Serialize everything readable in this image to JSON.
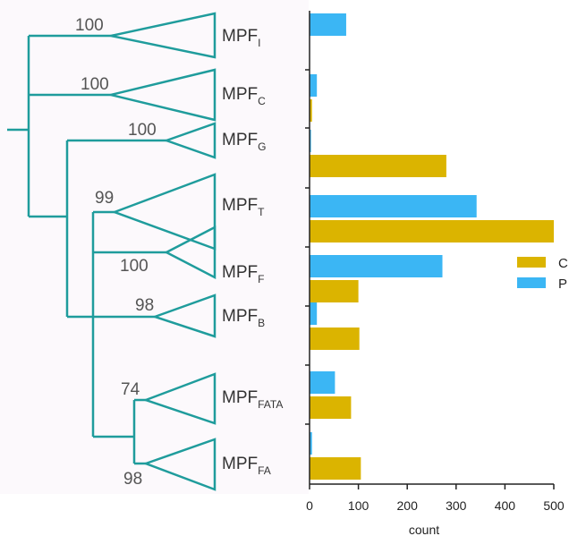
{
  "colors": {
    "tree": "#1f9c9c",
    "series_C": "#dbb400",
    "series_P": "#3bb6f4"
  },
  "tree": {
    "clades": [
      {
        "name": "MPF",
        "sub": "I",
        "bootstrap": "100"
      },
      {
        "name": "MPF",
        "sub": "C",
        "bootstrap": "100"
      },
      {
        "name": "MPF",
        "sub": "G",
        "bootstrap": "100"
      },
      {
        "name": "MPF",
        "sub": "T",
        "bootstrap": "99"
      },
      {
        "name": "MPF",
        "sub": "F",
        "bootstrap": "100"
      },
      {
        "name": "MPF",
        "sub": "B",
        "bootstrap": "98"
      },
      {
        "name": "MPF",
        "sub": "FATA",
        "bootstrap": "74"
      },
      {
        "name": "MPF",
        "sub": "FA",
        "bootstrap": "98"
      }
    ]
  },
  "chart_data": {
    "type": "bar",
    "orientation": "horizontal",
    "categories": [
      "MPF_I",
      "MPF_C",
      "MPF_G",
      "MPF_T",
      "MPF_F",
      "MPF_B",
      "MPF_FATA",
      "MPF_FA"
    ],
    "series": [
      {
        "name": "C",
        "values": [
          0,
          5,
          280,
          500,
          100,
          102,
          85,
          105
        ]
      },
      {
        "name": "P",
        "values": [
          75,
          15,
          3,
          342,
          272,
          15,
          52,
          5
        ]
      }
    ],
    "xlabel": "count",
    "xlim": [
      0,
      500
    ],
    "xticks": [
      "0",
      "100",
      "200",
      "300",
      "400",
      "500"
    ],
    "grid": false,
    "legend_position": "right"
  }
}
